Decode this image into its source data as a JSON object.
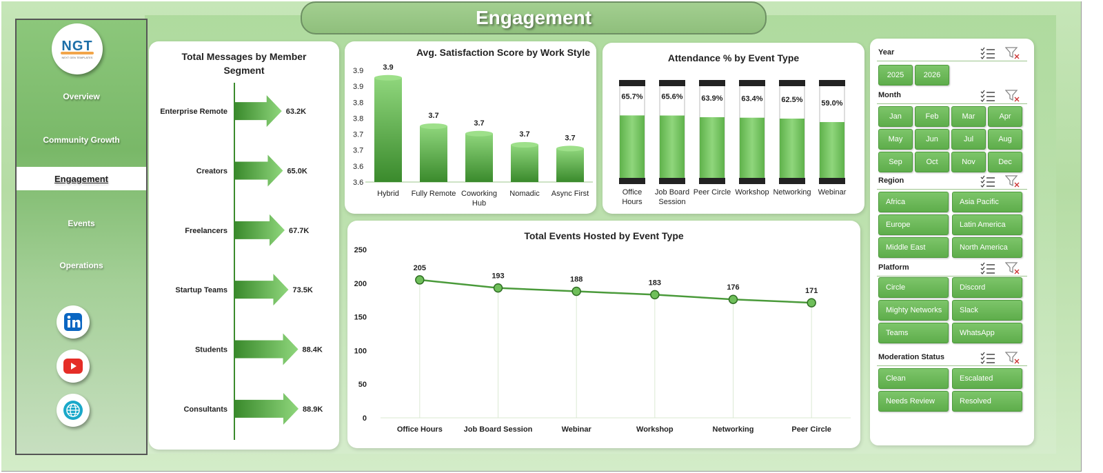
{
  "page_title": "Engagement",
  "logo": {
    "text": "NGT",
    "subtext": "NEXT GEN TEMPLATES"
  },
  "nav": [
    {
      "label": "Overview",
      "active": false
    },
    {
      "label": "Community Growth",
      "active": false
    },
    {
      "label": "Engagement",
      "active": true
    },
    {
      "label": "Events",
      "active": false
    },
    {
      "label": "Operations",
      "active": false
    }
  ],
  "social": [
    {
      "icon": "linkedin-icon",
      "color": "#0a66c2"
    },
    {
      "icon": "youtube-icon",
      "color": "#e52d27"
    },
    {
      "icon": "globe-icon",
      "color": "#1f7fd1"
    }
  ],
  "charts": {
    "messages": {
      "title": "Total Messages by Member Segment",
      "chart_data": {
        "type": "bar",
        "categories": [
          "Enterprise Remote",
          "Creators",
          "Freelancers",
          "Startup Teams",
          "Students",
          "Consultants"
        ],
        "values": [
          63.2,
          65.0,
          67.7,
          73.5,
          88.4,
          88.9
        ],
        "labels": [
          "63.2K",
          "65.0K",
          "67.7K",
          "73.5K",
          "88.4K",
          "88.9K"
        ],
        "unit": "K"
      }
    },
    "satisfaction": {
      "title": "Avg. Satisfaction Score by Work Style",
      "chart_data": {
        "type": "bar",
        "categories": [
          "Hybrid",
          "Fully Remote",
          "Coworking Hub",
          "Nomadic",
          "Async First"
        ],
        "values": [
          3.88,
          3.75,
          3.73,
          3.7,
          3.69
        ],
        "labels": [
          "3.9",
          "3.7",
          "3.7",
          "3.7",
          "3.7"
        ],
        "ylim": [
          3.6,
          3.9
        ],
        "yticks": [
          "3.9",
          "3.9",
          "3.8",
          "3.8",
          "3.7",
          "3.7",
          "3.6",
          "3.6"
        ]
      }
    },
    "attendance": {
      "title": "Attendance % by Event Type",
      "chart_data": {
        "type": "bar",
        "categories": [
          "Office Hours",
          "Job Board Session",
          "Peer Circle",
          "Workshop",
          "Networking",
          "Webinar"
        ],
        "values": [
          65.7,
          65.6,
          63.9,
          63.4,
          62.5,
          59.0
        ],
        "labels": [
          "65.7%",
          "65.6%",
          "63.9%",
          "63.4%",
          "62.5%",
          "59.0%"
        ],
        "ylim": [
          0,
          100
        ]
      }
    },
    "events": {
      "title": "Total Events Hosted by Event Type",
      "chart_data": {
        "type": "line",
        "categories": [
          "Office Hours",
          "Job Board Session",
          "Webinar",
          "Workshop",
          "Networking",
          "Peer Circle"
        ],
        "values": [
          205,
          193,
          188,
          183,
          176,
          171
        ],
        "ylim": [
          0,
          250
        ],
        "yticks": [
          0,
          50,
          100,
          150,
          200,
          250
        ]
      }
    }
  },
  "filters": [
    {
      "label": "Year",
      "options": [
        "2025",
        "2026"
      ]
    },
    {
      "label": "Month",
      "options": [
        "Jan",
        "Feb",
        "Mar",
        "Apr",
        "May",
        "Jun",
        "Jul",
        "Aug",
        "Sep",
        "Oct",
        "Nov",
        "Dec"
      ]
    },
    {
      "label": "Region",
      "options": [
        "Africa",
        "Asia Pacific",
        "Europe",
        "Latin America",
        "Middle East",
        "North America"
      ]
    },
    {
      "label": "Platform",
      "options": [
        "Circle",
        "Discord",
        "Mighty Networks",
        "Slack",
        "Teams",
        "WhatsApp"
      ]
    },
    {
      "label": "Moderation Status",
      "options": [
        "Clean",
        "Escalated",
        "Needs Review",
        "Resolved"
      ]
    }
  ],
  "colors": {
    "accent": "#5ead4b",
    "bar_dark": "#3a8a2c",
    "bar_light": "#8fd67c",
    "line": "#4a9a3a"
  }
}
